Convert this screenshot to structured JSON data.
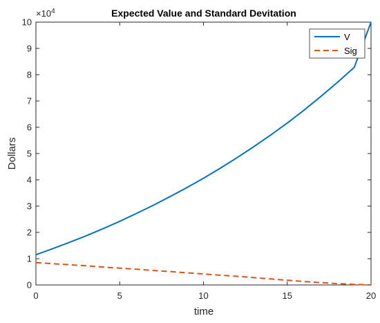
{
  "chart_data": {
    "type": "line",
    "title": "Expected Value and Standard Devitation",
    "xlabel": "time",
    "ylabel": "Dollars",
    "xlim": [
      0,
      20
    ],
    "ylim": [
      0,
      100000
    ],
    "x_ticks": [
      0,
      5,
      10,
      15,
      20
    ],
    "y_ticks": [
      0,
      10000,
      20000,
      30000,
      40000,
      50000,
      60000,
      70000,
      80000,
      90000,
      100000
    ],
    "x_tick_labels": [
      "0",
      "5",
      "10",
      "15",
      "20"
    ],
    "y_tick_labels": [
      "0",
      "1",
      "2",
      "3",
      "4",
      "5",
      "6",
      "7",
      "8",
      "9",
      "10"
    ],
    "y_exponent": {
      "base": "×10",
      "power": "4"
    },
    "grid": false,
    "legend_position": "top-right",
    "x": [
      0,
      1,
      2,
      3,
      4,
      5,
      6,
      7,
      8,
      9,
      10,
      11,
      12,
      13,
      14,
      15,
      16,
      17,
      18,
      19,
      20
    ],
    "series": [
      {
        "name": "V",
        "color": "#0072BD",
        "style": "solid",
        "values": [
          11500,
          13800,
          16200,
          18700,
          21400,
          24200,
          27200,
          30300,
          33600,
          37000,
          40600,
          44400,
          48400,
          52600,
          57000,
          61600,
          66500,
          71700,
          77100,
          82800,
          100000
        ]
      },
      {
        "name": "Sig",
        "color": "#D95319",
        "style": "dashed",
        "values": [
          8500,
          8100,
          7700,
          7300,
          6800,
          6400,
          6000,
          5500,
          5100,
          4600,
          4200,
          3700,
          3300,
          2800,
          2300,
          1800,
          1300,
          900,
          500,
          200,
          0
        ]
      }
    ]
  }
}
